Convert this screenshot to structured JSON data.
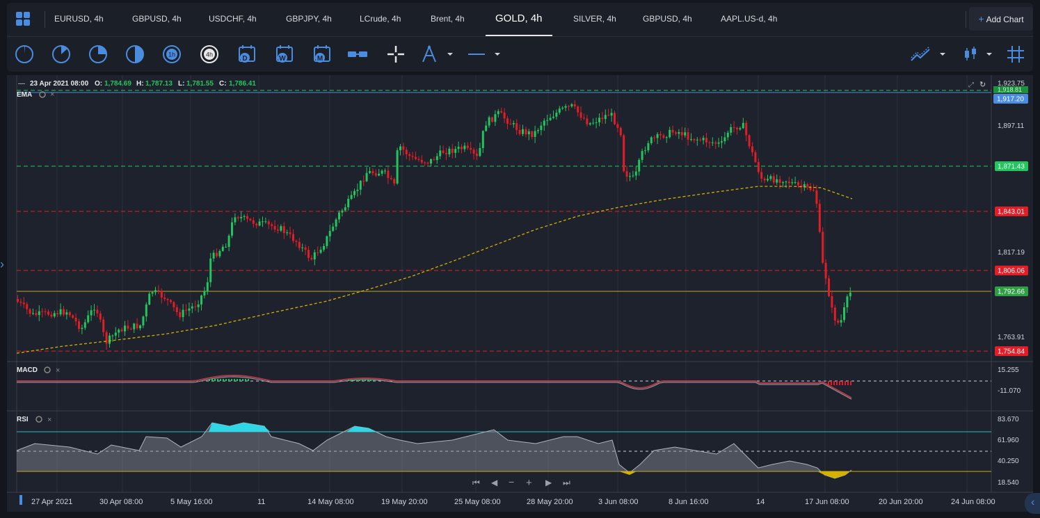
{
  "tabs": [
    {
      "label": "EURUSD, 4h",
      "active": false
    },
    {
      "label": "GBPUSD, 4h",
      "active": false
    },
    {
      "label": "USDCHF, 4h",
      "active": false
    },
    {
      "label": "GBPJPY, 4h",
      "active": false
    },
    {
      "label": "LCrude, 4h",
      "active": false
    },
    {
      "label": "Brent, 4h",
      "active": false
    },
    {
      "label": "GOLD, 4h",
      "active": true
    },
    {
      "label": "SILVER, 4h",
      "active": false
    },
    {
      "label": "GBPUSD, 4h",
      "active": false
    },
    {
      "label": "AAPL.US-d, 4h",
      "active": false
    }
  ],
  "add_chart": {
    "label": "Add Chart"
  },
  "toolbar": {
    "timeframes": [
      "1m",
      "5m",
      "15m",
      "30m",
      "1h",
      "4h",
      "D",
      "W",
      "M"
    ],
    "active_timeframe": "4h"
  },
  "ohlc": {
    "date": "23 Apr 2021 08:00",
    "o_label": "O:",
    "o": "1,784.69",
    "h_label": "H:",
    "h": "1,787.13",
    "l_label": "L:",
    "l": "1,781.55",
    "c_label": "C:",
    "c": "1,786.41"
  },
  "indicators": {
    "ema": "EMA",
    "macd": "MACD",
    "rsi": "RSI"
  },
  "price_axis": {
    "ticks": [
      "1,923.75",
      "1,897.11",
      "1,817.19",
      "1,763.91"
    ],
    "current": "1,917.20",
    "current_small": "1,918.81"
  },
  "levels": [
    {
      "label": "1,871.43",
      "color": "#22c55e"
    },
    {
      "label": "1,843.01",
      "color": "#e11d27"
    },
    {
      "label": "1,806.06",
      "color": "#e11d27"
    },
    {
      "label": "1,792.66",
      "color": "#2f9e44"
    },
    {
      "label": "1,754.84",
      "color": "#e11d27"
    }
  ],
  "macd_axis": [
    "15.255",
    "-11.070"
  ],
  "rsi_axis": [
    "83.670",
    "61.960",
    "40.250",
    "18.540"
  ],
  "time_axis": [
    "27 Apr 2021",
    "30 Apr 08:00",
    "5 May 16:00",
    "11",
    "14 May 08:00",
    "19 May 20:00",
    "25 May 08:00",
    "28 May 20:00",
    "3 Jun 08:00",
    "8 Jun 16:00",
    "14",
    "17 Jun 08:00",
    "20 Jun 20:00",
    "24 Jun 08:00"
  ]
}
